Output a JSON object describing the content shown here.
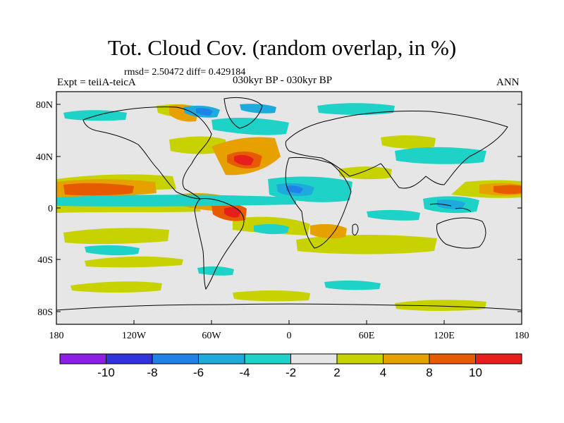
{
  "title": "Tot. Cloud Cov. (random overlap, in %)",
  "stats": "rmsd= 2.50472  diff= 0.429184",
  "left_label": "Expt = teiiA-teicA",
  "center_label": "030kyr BP - 030kyr BP",
  "right_label": "ANN",
  "map": {
    "lat_ticks": [
      "80N",
      "40N",
      "0",
      "40S",
      "80S"
    ],
    "lon_ticks": [
      "180",
      "120W",
      "60W",
      "0",
      "60E",
      "120E",
      "180"
    ],
    "background_color": "#e6e6e6",
    "coastline_color": "#000000"
  },
  "colorbar": {
    "labels": [
      "-10",
      "-8",
      "-6",
      "-4",
      "-2",
      "2",
      "4",
      "8",
      "10"
    ],
    "colors": [
      "#8c1ee6",
      "#3232dc",
      "#1e82e6",
      "#1eaadc",
      "#1ed2c8",
      "#e6e6e6",
      "#c8d200",
      "#e6a000",
      "#e65a00",
      "#e61e1e"
    ]
  }
}
